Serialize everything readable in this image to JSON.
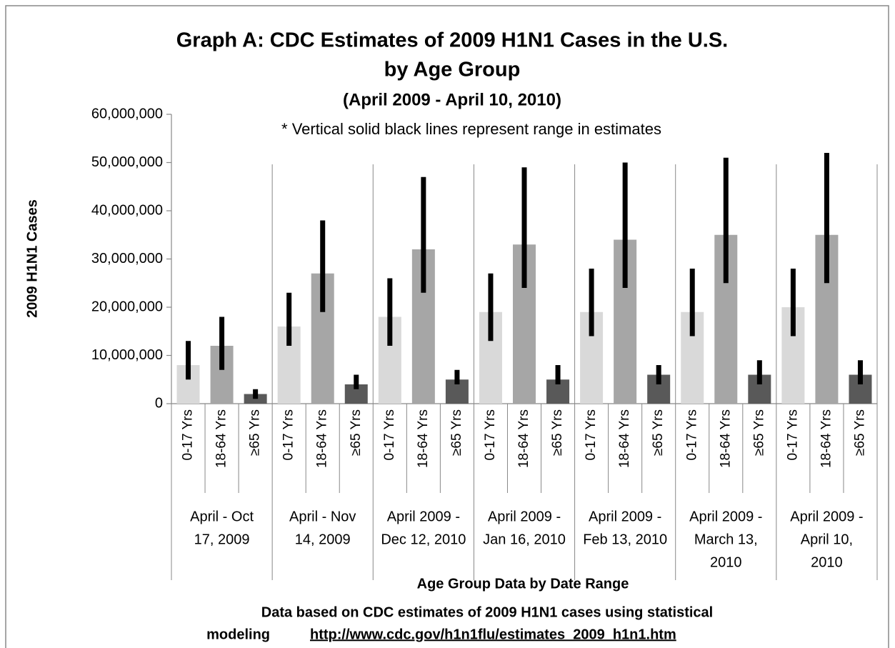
{
  "chart_data": {
    "type": "bar",
    "title": [
      "Graph A: CDC Estimates of 2009 H1N1 Cases in the U.S.",
      "by Age Group"
    ],
    "subtitle": "(April 2009 - April 10, 2010)",
    "annotation": "* Vertical solid black lines represent range in estimates",
    "y_label": "2009 H1N1 Cases",
    "x_label": "Age Group Data by Date Range",
    "footnote": [
      "Data based on CDC estimates of 2009 H1N1 cases using statistical",
      "modeling"
    ],
    "source_url": "http://www.cdc.gov/h1n1flu/estimates_2009_h1n1.htm",
    "ylim": [
      0,
      60000000
    ],
    "yticks": [
      0,
      {
        "value": 10000000,
        "label": "10,000,000"
      },
      {
        "value": 20000000,
        "label": "20,000,000"
      },
      {
        "value": 30000000,
        "label": "30,000,000"
      },
      {
        "value": 40000000,
        "label": "40,000,000"
      },
      {
        "value": 50000000,
        "label": "50,000,000"
      },
      {
        "value": 60000000,
        "label": "60,000,000"
      }
    ],
    "colors": [
      "#d9d9d9",
      "#a6a6a6",
      "#595959"
    ],
    "error_color": "#000000",
    "groups": [
      {
        "label": [
          "April - Oct",
          "17, 2009"
        ],
        "bars": [
          {
            "category": "0-17 Yrs",
            "value": 8000000,
            "low": 5000000,
            "high": 13000000
          },
          {
            "category": "18-64 Yrs",
            "value": 12000000,
            "low": 7000000,
            "high": 18000000
          },
          {
            "category": "≥65 Yrs",
            "value": 2000000,
            "low": 1000000,
            "high": 3000000
          }
        ]
      },
      {
        "label": [
          "April - Nov",
          "14, 2009"
        ],
        "bars": [
          {
            "category": "0-17 Yrs",
            "value": 16000000,
            "low": 12000000,
            "high": 23000000
          },
          {
            "category": "18-64 Yrs",
            "value": 27000000,
            "low": 19000000,
            "high": 38000000
          },
          {
            "category": "≥65 Yrs",
            "value": 4000000,
            "low": 3000000,
            "high": 6000000
          }
        ]
      },
      {
        "label": [
          "April 2009 -",
          "Dec 12, 2010"
        ],
        "bars": [
          {
            "category": "0-17 Yrs",
            "value": 18000000,
            "low": 12000000,
            "high": 26000000
          },
          {
            "category": "18-64 Yrs",
            "value": 32000000,
            "low": 23000000,
            "high": 47000000
          },
          {
            "category": "≥65 Yrs",
            "value": 5000000,
            "low": 4000000,
            "high": 7000000
          }
        ]
      },
      {
        "label": [
          "April 2009 -",
          "Jan 16, 2010"
        ],
        "bars": [
          {
            "category": "0-17 Yrs",
            "value": 19000000,
            "low": 13000000,
            "high": 27000000
          },
          {
            "category": "18-64 Yrs",
            "value": 33000000,
            "low": 24000000,
            "high": 49000000
          },
          {
            "category": "≥65 Yrs",
            "value": 5000000,
            "low": 4000000,
            "high": 8000000
          }
        ]
      },
      {
        "label": [
          "April 2009 -",
          "Feb 13, 2010"
        ],
        "bars": [
          {
            "category": "0-17 Yrs",
            "value": 19000000,
            "low": 14000000,
            "high": 28000000
          },
          {
            "category": "18-64 Yrs",
            "value": 34000000,
            "low": 24000000,
            "high": 50000000
          },
          {
            "category": "≥65 Yrs",
            "value": 6000000,
            "low": 4000000,
            "high": 8000000
          }
        ]
      },
      {
        "label": [
          "April 2009 -",
          "March 13,",
          "2010"
        ],
        "bars": [
          {
            "category": "0-17 Yrs",
            "value": 19000000,
            "low": 14000000,
            "high": 28000000
          },
          {
            "category": "18-64 Yrs",
            "value": 35000000,
            "low": 25000000,
            "high": 51000000
          },
          {
            "category": "≥65 Yrs",
            "value": 6000000,
            "low": 4000000,
            "high": 9000000
          }
        ]
      },
      {
        "label": [
          "April 2009 -",
          "April 10,",
          "2010"
        ],
        "bars": [
          {
            "category": "0-17 Yrs",
            "value": 20000000,
            "low": 14000000,
            "high": 28000000
          },
          {
            "category": "18-64 Yrs",
            "value": 35000000,
            "low": 25000000,
            "high": 52000000
          },
          {
            "category": "≥65 Yrs",
            "value": 6000000,
            "low": 4000000,
            "high": 9000000
          }
        ]
      }
    ]
  }
}
